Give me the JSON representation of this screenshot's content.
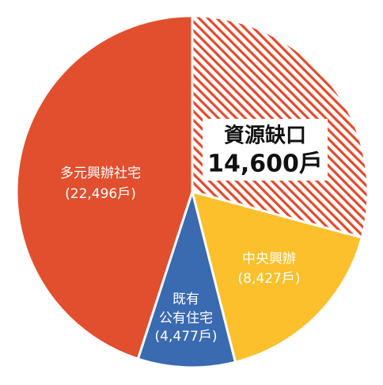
{
  "chart_data": {
    "type": "pie",
    "unit": "戶",
    "slices": [
      {
        "id": "gap",
        "category": "資源缺口",
        "value_text": "14,600戶",
        "value": 14600,
        "color": "#e24a2f",
        "pattern": "diagonal-hatch"
      },
      {
        "id": "central",
        "category": "中央興辦",
        "value_text": "(8,427戶)",
        "value": 8427,
        "color": "#fcc02d"
      },
      {
        "id": "existing",
        "category_line1": "既有",
        "category_line2": "公有住宅",
        "value_text": "(4,477戶)",
        "value": 4477,
        "color": "#3a6ab0"
      },
      {
        "id": "diverse",
        "category": "多元興辦社宅",
        "value_text": "(22,496戶)",
        "value": 22496,
        "color": "#e14f2e"
      }
    ]
  }
}
